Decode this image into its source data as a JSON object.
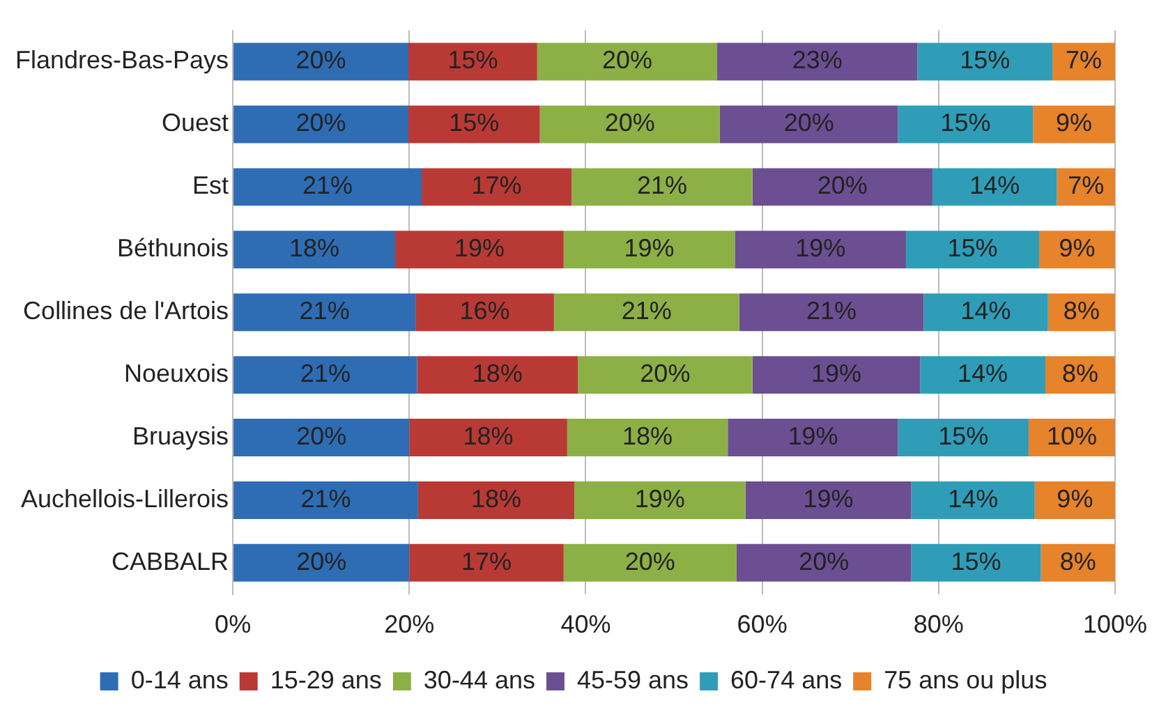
{
  "chart_data": {
    "type": "bar",
    "orientation": "horizontal",
    "stacked": true,
    "categories": [
      "Flandres-Bas-Pays",
      "Ouest",
      "Est",
      "Béthunois",
      "Collines de l'Artois",
      "Noeuxois",
      "Bruaysis",
      "Auchellois-Lillerois",
      "CABBALR"
    ],
    "series": [
      {
        "name": "0-14 ans",
        "color": "#2e6db4",
        "values": [
          19.9,
          19.9,
          21.4,
          18.4,
          20.7,
          20.9,
          20.0,
          21.0,
          20.0
        ],
        "value_labels": [
          "20%",
          "20%",
          "21%",
          "18%",
          "21%",
          "21%",
          "20%",
          "21%",
          "20%"
        ]
      },
      {
        "name": "15-29 ans",
        "color": "#b93a35",
        "values": [
          14.6,
          14.9,
          17.0,
          19.1,
          15.7,
          18.2,
          17.9,
          17.7,
          17.5
        ],
        "value_labels": [
          "15%",
          "15%",
          "17%",
          "19%",
          "16%",
          "18%",
          "18%",
          "18%",
          "17%"
        ]
      },
      {
        "name": "30-44 ans",
        "color": "#8cb046",
        "values": [
          20.4,
          20.4,
          20.5,
          19.4,
          21.0,
          19.8,
          18.2,
          19.4,
          19.6
        ],
        "value_labels": [
          "20%",
          "20%",
          "21%",
          "19%",
          "21%",
          "20%",
          "18%",
          "19%",
          "20%"
        ]
      },
      {
        "name": "45-59 ans",
        "color": "#6b4f92",
        "values": [
          22.7,
          20.2,
          20.4,
          19.4,
          20.9,
          19.0,
          19.3,
          18.8,
          19.8
        ],
        "value_labels": [
          "23%",
          "20%",
          "20%",
          "19%",
          "21%",
          "19%",
          "19%",
          "19%",
          "20%"
        ]
      },
      {
        "name": "60-74 ans",
        "color": "#2f9db8",
        "values": [
          15.3,
          15.3,
          14.1,
          15.1,
          14.1,
          14.2,
          14.8,
          14.0,
          14.7
        ],
        "value_labels": [
          "15%",
          "15%",
          "14%",
          "15%",
          "14%",
          "14%",
          "15%",
          "14%",
          "15%"
        ]
      },
      {
        "name": "75 ans ou plus",
        "color": "#e6832b",
        "values": [
          7.1,
          9.3,
          6.6,
          8.6,
          7.6,
          7.9,
          9.8,
          9.1,
          8.4
        ],
        "value_labels": [
          "7%",
          "9%",
          "7%",
          "9%",
          "8%",
          "8%",
          "10%",
          "9%",
          "8%"
        ]
      }
    ],
    "xlim": [
      0,
      100
    ],
    "xticks": [
      {
        "value": 0,
        "label": "0%"
      },
      {
        "value": 20,
        "label": "20%"
      },
      {
        "value": 40,
        "label": "40%"
      },
      {
        "value": 60,
        "label": "60%"
      },
      {
        "value": 80,
        "label": "80%"
      },
      {
        "value": 100,
        "label": "100%"
      }
    ],
    "grid": "x",
    "legend": "bottom"
  }
}
